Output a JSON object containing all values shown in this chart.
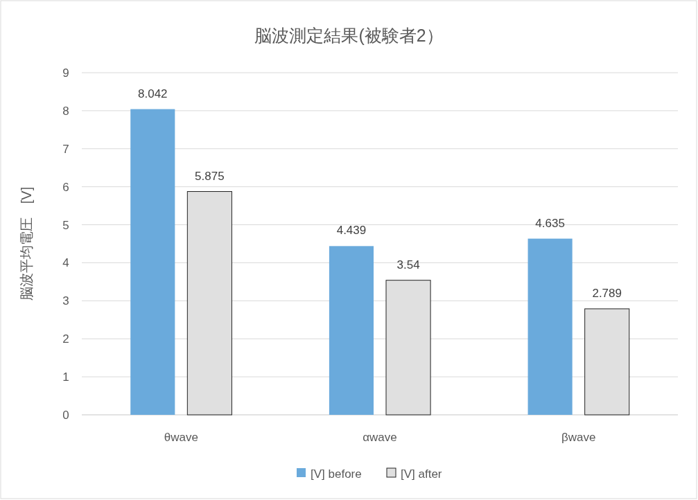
{
  "chart_data": {
    "type": "bar",
    "title": "脳波測定結果(被験者2）",
    "ylabel": "脳波平均電圧　[V]",
    "categories": [
      "θwave",
      "αwave",
      "βwave"
    ],
    "series": [
      {
        "name": "[V] before",
        "color": "#6aaadc",
        "values": [
          8.042,
          4.439,
          4.635
        ]
      },
      {
        "name": "[V] after",
        "color": "#e0e0e0",
        "values": [
          5.875,
          3.54,
          2.789
        ]
      }
    ],
    "ylim": [
      0,
      9
    ],
    "yticks": [
      0,
      1,
      2,
      3,
      4,
      5,
      6,
      7,
      8,
      9
    ],
    "grid": "y",
    "legend": "bottom",
    "data_labels": true
  }
}
